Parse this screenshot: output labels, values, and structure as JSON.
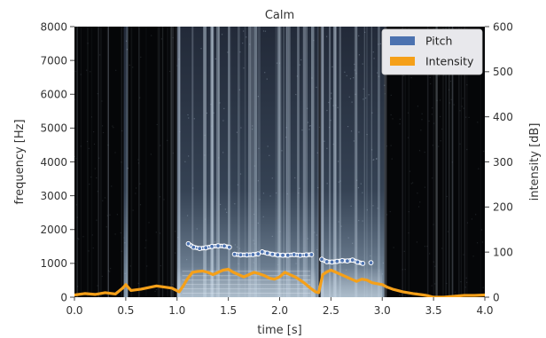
{
  "chart_data": {
    "type": "line",
    "title": "Calm",
    "xlabel": "time [s]",
    "ylabel_left": "frequency [Hz]",
    "ylabel_right": "intensity [dB]",
    "xlim": [
      0,
      4
    ],
    "ylim_left": [
      0,
      8000
    ],
    "ylim_right": [
      0,
      600
    ],
    "x_ticks": [
      "0.0",
      "0.5",
      "1.0",
      "1.5",
      "2.0",
      "2.5",
      "3.0",
      "3.5",
      "4.0"
    ],
    "y_ticks_left": [
      "0",
      "1000",
      "2000",
      "3000",
      "4000",
      "5000",
      "6000",
      "7000",
      "8000"
    ],
    "y_ticks_right": [
      "0",
      "100",
      "200",
      "300",
      "400",
      "500",
      "600"
    ],
    "grid": false,
    "legend_position": "top-right",
    "background": "spectrogram",
    "series": [
      {
        "name": "Pitch",
        "axis": "left",
        "color": "#4c72b0",
        "style": "markers",
        "segments": [
          {
            "x": [
              1.11,
              1.16,
              1.22,
              1.28,
              1.34,
              1.4,
              1.46,
              1.51
            ],
            "y": [
              1580,
              1480,
              1440,
              1460,
              1500,
              1520,
              1510,
              1480
            ]
          },
          {
            "x": [
              1.56,
              1.62,
              1.68,
              1.74,
              1.79
            ],
            "y": [
              1270,
              1250,
              1250,
              1260,
              1280
            ]
          },
          {
            "x": [
              1.83,
              1.88,
              1.93,
              1.98,
              2.03,
              2.08,
              2.14,
              2.2,
              2.26,
              2.31
            ],
            "y": [
              1340,
              1300,
              1270,
              1250,
              1240,
              1240,
              1260,
              1240,
              1250,
              1260
            ]
          },
          {
            "x": [
              2.41,
              2.46,
              2.51,
              2.56,
              2.61,
              2.66,
              2.71,
              2.76,
              2.81
            ],
            "y": [
              1120,
              1050,
              1040,
              1060,
              1080,
              1070,
              1100,
              1040,
              1000
            ]
          },
          {
            "x": [
              2.89
            ],
            "y": [
              1020
            ]
          }
        ]
      },
      {
        "name": "Intensity",
        "axis": "right",
        "color": "#f5a019",
        "style": "line",
        "x": [
          0.0,
          0.1,
          0.2,
          0.3,
          0.4,
          0.47,
          0.5,
          0.55,
          0.65,
          0.8,
          0.95,
          1.02,
          1.06,
          1.1,
          1.15,
          1.2,
          1.25,
          1.3,
          1.35,
          1.4,
          1.45,
          1.5,
          1.55,
          1.6,
          1.65,
          1.7,
          1.75,
          1.8,
          1.85,
          1.9,
          1.95,
          2.0,
          2.05,
          2.1,
          2.15,
          2.2,
          2.25,
          2.3,
          2.35,
          2.38,
          2.42,
          2.46,
          2.5,
          2.55,
          2.6,
          2.65,
          2.7,
          2.75,
          2.8,
          2.85,
          2.9,
          2.95,
          3.0,
          3.05,
          3.1,
          3.2,
          3.3,
          3.4,
          3.45,
          3.5,
          3.6,
          3.7,
          3.8,
          3.9,
          4.0
        ],
        "y": [
          5,
          8,
          6,
          10,
          7,
          20,
          28,
          15,
          18,
          25,
          20,
          12,
          25,
          40,
          55,
          57,
          58,
          55,
          50,
          55,
          60,
          62,
          55,
          50,
          45,
          50,
          55,
          52,
          48,
          42,
          40,
          45,
          55,
          50,
          45,
          38,
          30,
          20,
          12,
          10,
          50,
          56,
          60,
          55,
          50,
          45,
          40,
          35,
          40,
          38,
          32,
          30,
          28,
          22,
          18,
          12,
          8,
          5,
          3,
          0,
          0,
          2,
          4,
          4,
          5
        ]
      }
    ]
  }
}
